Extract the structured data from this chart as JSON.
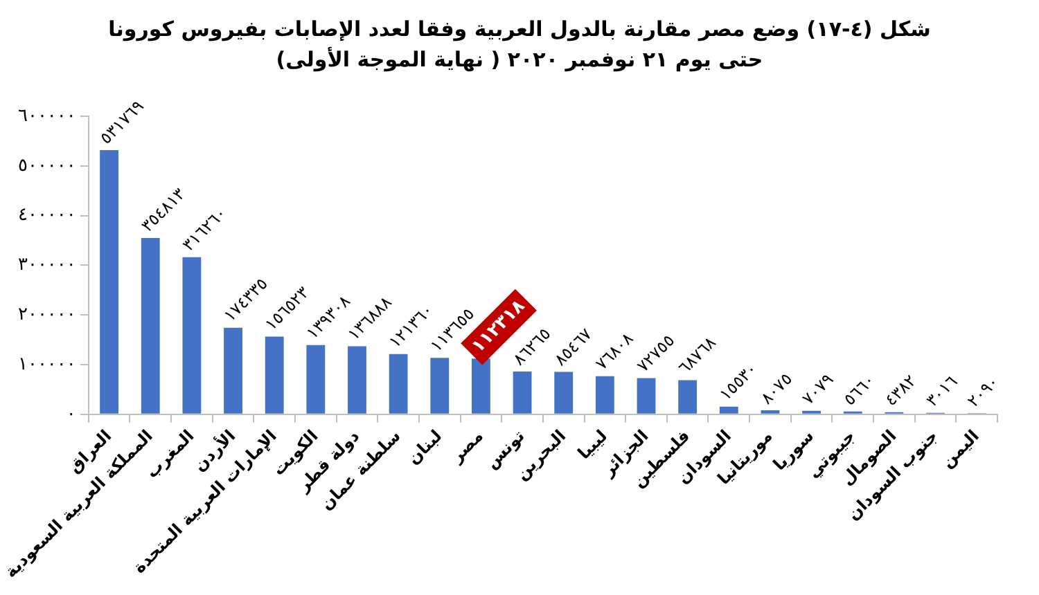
{
  "chart_data": {
    "type": "bar",
    "title": "شكل (٤-١٧) وضع مصر مقارنة بالدول العربية وفقا لعدد الإصابات بفيروس كورونا حتى يوم ٢١ نوفمبر ٢٠٢٠ ( نهاية الموجة الأولى)",
    "categories": [
      "العراق",
      "المملكة العربية السعودية",
      "المغرب",
      "الأردن",
      "الإمارات العربية المتحدة",
      "الكويت",
      "دولة قطر",
      "سلطنة عمان",
      "لبنان",
      "مصر",
      "تونس",
      "البحرين",
      "ليبيا",
      "الجزائر",
      "فلسطين",
      "السودان",
      "موريتانيا",
      "سوريا",
      "جيبوتي",
      "الصومال",
      "جنوب السودان",
      "اليمن"
    ],
    "values": [
      531769,
      354813,
      316260,
      174335,
      156523,
      139308,
      136888,
      121360,
      113655,
      112318,
      86265,
      85467,
      76808,
      72755,
      68768,
      15530,
      8075,
      7079,
      5660,
      4382,
      3016,
      2090
    ],
    "value_labels": [
      "٥٣١٧٦٩",
      "٣٥٤٨١٣",
      "٣١٦٢٦٠",
      "١٧٤٣٣٥",
      "١٥٦٥٢٣",
      "١٣٩٣٠٨",
      "١٣٦٨٨٨",
      "١٢١٣٦٠",
      "١١٣٦٥٥",
      null,
      "٨٦٢٦٥",
      "٨٥٤٦٧",
      "٧٦٨٠٨",
      "٧٢٧٥٥",
      "٦٨٧٦٨",
      "١٥٥٣٠",
      "٨٠٧٥",
      "٧٠٧٩",
      "٥٦٦٠",
      "٤٣٨٢",
      "٣٠١٦",
      "٢٠٩٠"
    ],
    "annotations": [
      {
        "text": "١١٢٣١٨",
        "x": "مصر",
        "y": 112318
      }
    ],
    "color": "#4472c4",
    "ylim": [
      0,
      600000
    ],
    "yticks": [
      {
        "value": 0,
        "label": "٠"
      },
      {
        "value": 100000,
        "label": "١٠٠٠٠٠"
      },
      {
        "value": 200000,
        "label": "٢٠٠٠٠٠"
      },
      {
        "value": 300000,
        "label": "٣٠٠٠٠٠"
      },
      {
        "value": 400000,
        "label": "٤٠٠٠٠٠"
      },
      {
        "value": 500000,
        "label": "٥٠٠٠٠٠"
      },
      {
        "value": 600000,
        "label": "٦٠٠٠٠٠"
      }
    ],
    "grid": false,
    "legend": false
  }
}
